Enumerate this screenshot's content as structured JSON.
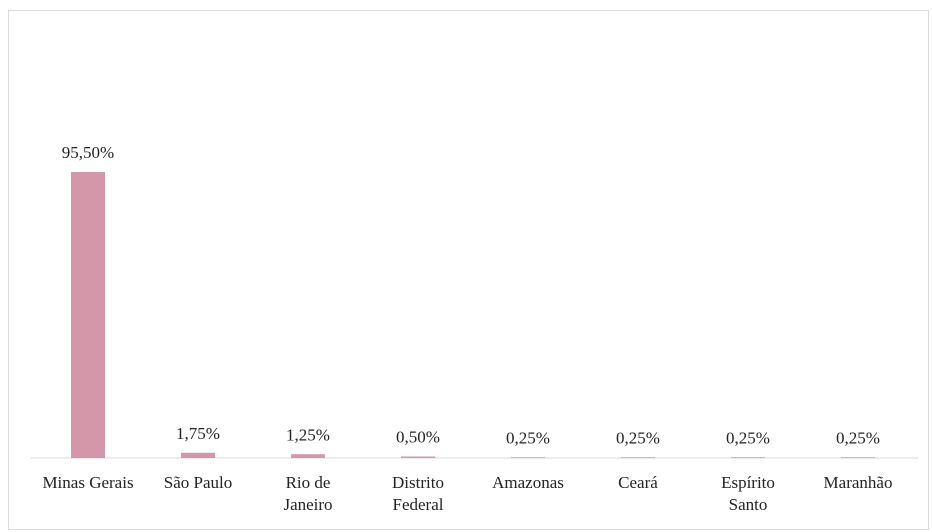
{
  "chart_data": {
    "type": "bar",
    "categories": [
      "Minas Gerais",
      "São Paulo",
      "Rio de Janeiro",
      "Distrito Federal",
      "Amazonas",
      "Ceará",
      "Espírito Santo",
      "Maranhão"
    ],
    "values": [
      95.5,
      1.75,
      1.25,
      0.5,
      0.25,
      0.25,
      0.25,
      0.25
    ],
    "value_labels": [
      "95,50%",
      "1,75%",
      "1,25%",
      "0,50%",
      "0,25%",
      "0,25%",
      "0,25%",
      "0,25%"
    ],
    "color": "#d496a9"
  }
}
